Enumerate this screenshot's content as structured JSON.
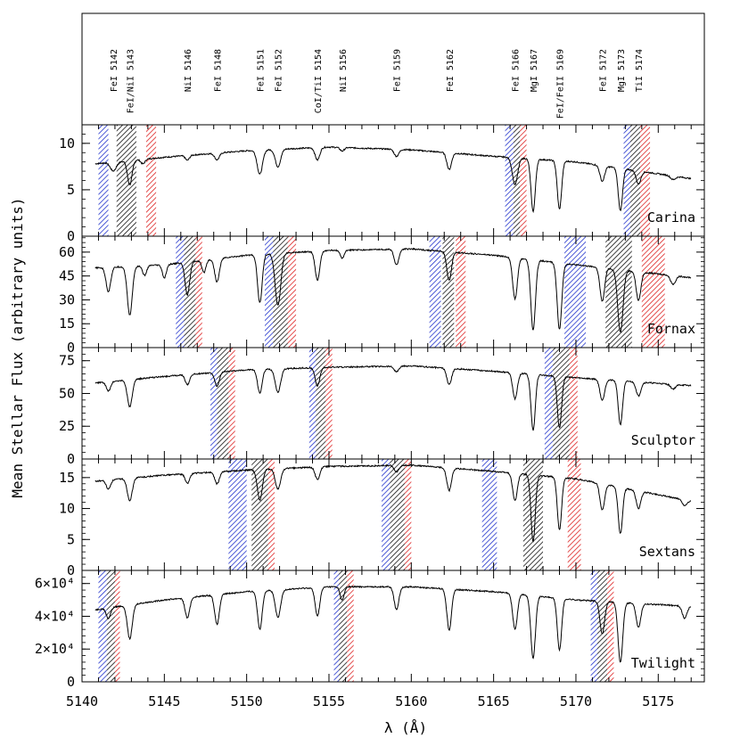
{
  "chart_data": {
    "type": "line",
    "xlabel": "λ (Å)",
    "ylabel": "Mean Stellar Flux (arbitrary units)",
    "xlim": [
      5140,
      5177.8
    ],
    "x_ticks": [
      "5140",
      "5145",
      "5150",
      "5155",
      "5160",
      "5165",
      "5170",
      "5175"
    ],
    "band_colors": {
      "blue": "#2233cc",
      "black": "#111111",
      "red": "#dd2222"
    },
    "line_labels": [
      {
        "label": "FeI 5142",
        "x": 5141.9
      },
      {
        "label": "FeI/NiI 5143",
        "x": 5142.9
      },
      {
        "label": "NiI 5146",
        "x": 5146.4
      },
      {
        "label": "FeI 5148",
        "x": 5148.2
      },
      {
        "label": "FeI 5151",
        "x": 5150.8
      },
      {
        "label": "FeI 5152",
        "x": 5151.9
      },
      {
        "label": "CoI/TiI 5154",
        "x": 5154.3
      },
      {
        "label": "NiI 5156",
        "x": 5155.8
      },
      {
        "label": "FeI 5159",
        "x": 5159.1
      },
      {
        "label": "FeI 5162",
        "x": 5162.3
      },
      {
        "label": "FeI 5166",
        "x": 5166.3
      },
      {
        "label": "MgI 5167",
        "x": 5167.4
      },
      {
        "label": "FeI/FeII 5169",
        "x": 5169.0
      },
      {
        "label": "FeI 5172",
        "x": 5171.6
      },
      {
        "label": "MgI 5173",
        "x": 5172.7
      },
      {
        "label": "TiI 5174",
        "x": 5173.8
      }
    ],
    "panels": [
      {
        "name": "Carina",
        "ylim": [
          0,
          12
        ],
        "y_ticks": [
          "0",
          "5",
          "10"
        ],
        "y_tick_values": [
          0,
          5,
          10
        ],
        "continuum": [
          [
            5140.8,
            7.8
          ],
          [
            5145,
            8.5
          ],
          [
            5150,
            9.2
          ],
          [
            5155,
            9.6
          ],
          [
            5160,
            9.3
          ],
          [
            5165,
            8.6
          ],
          [
            5170,
            8.0
          ],
          [
            5177,
            6.2
          ]
        ],
        "lines": [
          [
            5141.9,
            0.12,
            0.18
          ],
          [
            5142.9,
            0.32,
            0.14
          ],
          [
            5143.7,
            0.06,
            0.12
          ],
          [
            5146.4,
            0.06,
            0.12
          ],
          [
            5148.2,
            0.08,
            0.14
          ],
          [
            5150.8,
            0.28,
            0.16
          ],
          [
            5151.9,
            0.2,
            0.16
          ],
          [
            5154.3,
            0.14,
            0.14
          ],
          [
            5155.8,
            0.04,
            0.12
          ],
          [
            5159.1,
            0.08,
            0.14
          ],
          [
            5162.3,
            0.2,
            0.14
          ],
          [
            5166.3,
            0.34,
            0.16
          ],
          [
            5167.4,
            0.68,
            0.13
          ],
          [
            5169.0,
            0.64,
            0.13
          ],
          [
            5171.6,
            0.22,
            0.14
          ],
          [
            5172.7,
            0.62,
            0.13
          ],
          [
            5173.8,
            0.2,
            0.14
          ],
          [
            5175.9,
            0.06,
            0.15
          ]
        ],
        "bands": [
          {
            "color": "blue",
            "x0": 5141.0,
            "x1": 5141.6
          },
          {
            "color": "black",
            "x0": 5142.1,
            "x1": 5143.3
          },
          {
            "color": "red",
            "x0": 5143.9,
            "x1": 5144.5
          },
          {
            "color": "blue",
            "x0": 5165.7,
            "x1": 5166.2
          },
          {
            "color": "black",
            "x0": 5166.2,
            "x1": 5166.6
          },
          {
            "color": "red",
            "x0": 5166.6,
            "x1": 5167.0
          },
          {
            "color": "blue",
            "x0": 5172.9,
            "x1": 5173.3
          },
          {
            "color": "black",
            "x0": 5173.3,
            "x1": 5173.9
          },
          {
            "color": "red",
            "x0": 5173.9,
            "x1": 5174.5
          }
        ]
      },
      {
        "name": "Fornax",
        "ylim": [
          0,
          70
        ],
        "y_ticks": [
          "0",
          "15",
          "30",
          "45",
          "60"
        ],
        "y_tick_values": [
          0,
          15,
          30,
          45,
          60
        ],
        "continuum": [
          [
            5140.8,
            50
          ],
          [
            5145,
            52
          ],
          [
            5150,
            58
          ],
          [
            5155,
            61
          ],
          [
            5160,
            62
          ],
          [
            5165,
            58
          ],
          [
            5170,
            52
          ],
          [
            5177,
            44
          ]
        ],
        "lines": [
          [
            5141.6,
            0.3,
            0.14
          ],
          [
            5142.9,
            0.6,
            0.15
          ],
          [
            5143.8,
            0.12,
            0.12
          ],
          [
            5145.0,
            0.16,
            0.12
          ],
          [
            5146.4,
            0.38,
            0.14
          ],
          [
            5147.4,
            0.14,
            0.12
          ],
          [
            5148.2,
            0.26,
            0.14
          ],
          [
            5150.8,
            0.52,
            0.14
          ],
          [
            5151.9,
            0.55,
            0.17
          ],
          [
            5154.3,
            0.3,
            0.14
          ],
          [
            5155.8,
            0.08,
            0.12
          ],
          [
            5159.1,
            0.16,
            0.14
          ],
          [
            5162.3,
            0.3,
            0.14
          ],
          [
            5166.3,
            0.46,
            0.14
          ],
          [
            5167.4,
            0.8,
            0.14
          ],
          [
            5169.0,
            0.78,
            0.14
          ],
          [
            5171.6,
            0.42,
            0.14
          ],
          [
            5172.7,
            0.8,
            0.16
          ],
          [
            5173.8,
            0.38,
            0.14
          ],
          [
            5175.9,
            0.12,
            0.15
          ]
        ],
        "bands": [
          {
            "color": "blue",
            "x0": 5145.7,
            "x1": 5146.2
          },
          {
            "color": "black",
            "x0": 5146.2,
            "x1": 5146.9
          },
          {
            "color": "red",
            "x0": 5146.9,
            "x1": 5147.3
          },
          {
            "color": "blue",
            "x0": 5151.1,
            "x1": 5151.6
          },
          {
            "color": "black",
            "x0": 5151.6,
            "x1": 5152.5
          },
          {
            "color": "red",
            "x0": 5152.5,
            "x1": 5153.0
          },
          {
            "color": "blue",
            "x0": 5161.1,
            "x1": 5161.8
          },
          {
            "color": "black",
            "x0": 5161.9,
            "x1": 5162.6
          },
          {
            "color": "red",
            "x0": 5162.7,
            "x1": 5163.3
          },
          {
            "color": "blue",
            "x0": 5169.3,
            "x1": 5170.6
          },
          {
            "color": "black",
            "x0": 5171.8,
            "x1": 5173.4
          },
          {
            "color": "red",
            "x0": 5174.0,
            "x1": 5175.4
          }
        ]
      },
      {
        "name": "Sculptor",
        "ylim": [
          0,
          85
        ],
        "y_ticks": [
          "0",
          "25",
          "50",
          "75"
        ],
        "y_tick_values": [
          0,
          25,
          50,
          75
        ],
        "continuum": [
          [
            5140.8,
            58
          ],
          [
            5145,
            63
          ],
          [
            5150,
            68
          ],
          [
            5155,
            70
          ],
          [
            5160,
            71
          ],
          [
            5165,
            67
          ],
          [
            5170,
            62
          ],
          [
            5177,
            56
          ]
        ],
        "lines": [
          [
            5141.6,
            0.12,
            0.13
          ],
          [
            5142.9,
            0.34,
            0.15
          ],
          [
            5146.4,
            0.12,
            0.13
          ],
          [
            5148.2,
            0.16,
            0.14
          ],
          [
            5150.8,
            0.26,
            0.14
          ],
          [
            5151.9,
            0.26,
            0.16
          ],
          [
            5154.3,
            0.2,
            0.14
          ],
          [
            5159.1,
            0.06,
            0.14
          ],
          [
            5162.3,
            0.18,
            0.14
          ],
          [
            5166.3,
            0.3,
            0.14
          ],
          [
            5167.4,
            0.66,
            0.13
          ],
          [
            5169.0,
            0.62,
            0.13
          ],
          [
            5171.6,
            0.26,
            0.14
          ],
          [
            5172.7,
            0.56,
            0.13
          ],
          [
            5173.8,
            0.18,
            0.14
          ],
          [
            5175.9,
            0.06,
            0.15
          ]
        ],
        "bands": [
          {
            "color": "blue",
            "x0": 5147.8,
            "x1": 5148.2
          },
          {
            "color": "black",
            "x0": 5148.2,
            "x1": 5148.9
          },
          {
            "color": "red",
            "x0": 5148.9,
            "x1": 5149.3
          },
          {
            "color": "blue",
            "x0": 5153.8,
            "x1": 5154.2
          },
          {
            "color": "black",
            "x0": 5154.2,
            "x1": 5154.8
          },
          {
            "color": "red",
            "x0": 5154.8,
            "x1": 5155.2
          },
          {
            "color": "blue",
            "x0": 5168.1,
            "x1": 5168.6
          },
          {
            "color": "black",
            "x0": 5168.6,
            "x1": 5169.6
          },
          {
            "color": "red",
            "x0": 5169.6,
            "x1": 5170.1
          }
        ]
      },
      {
        "name": "Sextans",
        "ylim": [
          0,
          18
        ],
        "y_ticks": [
          "0",
          "5",
          "10",
          "15"
        ],
        "y_tick_values": [
          0,
          5,
          10,
          15
        ],
        "continuum": [
          [
            5140.8,
            14.4
          ],
          [
            5145,
            15.4
          ],
          [
            5150,
            16.2
          ],
          [
            5155,
            16.8
          ],
          [
            5160,
            17.0
          ],
          [
            5165,
            16.0
          ],
          [
            5170,
            14.8
          ],
          [
            5177,
            11.2
          ]
        ],
        "lines": [
          [
            5141.6,
            0.1,
            0.13
          ],
          [
            5142.9,
            0.24,
            0.15
          ],
          [
            5146.4,
            0.1,
            0.13
          ],
          [
            5148.2,
            0.12,
            0.14
          ],
          [
            5150.8,
            0.3,
            0.15
          ],
          [
            5151.9,
            0.2,
            0.16
          ],
          [
            5154.3,
            0.12,
            0.14
          ],
          [
            5159.1,
            0.06,
            0.14
          ],
          [
            5162.3,
            0.22,
            0.14
          ],
          [
            5166.3,
            0.28,
            0.14
          ],
          [
            5167.4,
            0.7,
            0.13
          ],
          [
            5169.0,
            0.56,
            0.13
          ],
          [
            5171.6,
            0.3,
            0.14
          ],
          [
            5172.7,
            0.56,
            0.13
          ],
          [
            5173.8,
            0.22,
            0.14
          ],
          [
            5176.6,
            0.08,
            0.14
          ]
        ],
        "bands": [
          {
            "color": "blue",
            "x0": 5148.9,
            "x1": 5150.0
          },
          {
            "color": "black",
            "x0": 5150.3,
            "x1": 5151.3
          },
          {
            "color": "red",
            "x0": 5151.3,
            "x1": 5151.7
          },
          {
            "color": "blue",
            "x0": 5158.2,
            "x1": 5158.7
          },
          {
            "color": "black",
            "x0": 5158.7,
            "x1": 5159.6
          },
          {
            "color": "red",
            "x0": 5159.6,
            "x1": 5160.0
          },
          {
            "color": "blue",
            "x0": 5164.3,
            "x1": 5165.2
          },
          {
            "color": "black",
            "x0": 5166.8,
            "x1": 5168.0
          },
          {
            "color": "red",
            "x0": 5169.5,
            "x1": 5170.3
          }
        ]
      },
      {
        "name": "Twilight",
        "ylim": [
          0,
          68000
        ],
        "y_ticks": [
          "0",
          "2×10⁴",
          "4×10⁴",
          "6×10⁴"
        ],
        "y_tick_values": [
          0,
          20000,
          40000,
          60000
        ],
        "continuum": [
          [
            5140.8,
            44000
          ],
          [
            5145,
            50000
          ],
          [
            5150,
            55000
          ],
          [
            5155,
            58000
          ],
          [
            5160,
            58000
          ],
          [
            5165,
            55000
          ],
          [
            5170,
            50000
          ],
          [
            5177,
            46000
          ]
        ],
        "lines": [
          [
            5141.6,
            0.14,
            0.13
          ],
          [
            5142.9,
            0.44,
            0.15
          ],
          [
            5146.4,
            0.24,
            0.14
          ],
          [
            5148.2,
            0.34,
            0.14
          ],
          [
            5150.8,
            0.42,
            0.14
          ],
          [
            5151.9,
            0.3,
            0.16
          ],
          [
            5154.3,
            0.3,
            0.14
          ],
          [
            5155.8,
            0.14,
            0.12
          ],
          [
            5159.1,
            0.24,
            0.14
          ],
          [
            5162.3,
            0.44,
            0.14
          ],
          [
            5166.3,
            0.4,
            0.14
          ],
          [
            5167.4,
            0.72,
            0.14
          ],
          [
            5169.0,
            0.62,
            0.13
          ],
          [
            5171.6,
            0.4,
            0.14
          ],
          [
            5172.7,
            0.76,
            0.14
          ],
          [
            5173.8,
            0.3,
            0.14
          ],
          [
            5176.6,
            0.16,
            0.14
          ]
        ],
        "bands": [
          {
            "color": "blue",
            "x0": 5141.0,
            "x1": 5141.5
          },
          {
            "color": "black",
            "x0": 5141.5,
            "x1": 5142.0
          },
          {
            "color": "red",
            "x0": 5142.0,
            "x1": 5142.3
          },
          {
            "color": "blue",
            "x0": 5155.3,
            "x1": 5155.6
          },
          {
            "color": "black",
            "x0": 5155.6,
            "x1": 5156.1
          },
          {
            "color": "red",
            "x0": 5156.1,
            "x1": 5156.5
          },
          {
            "color": "blue",
            "x0": 5170.9,
            "x1": 5171.3
          },
          {
            "color": "black",
            "x0": 5171.3,
            "x1": 5171.9
          },
          {
            "color": "red",
            "x0": 5171.9,
            "x1": 5172.3
          }
        ]
      }
    ]
  }
}
